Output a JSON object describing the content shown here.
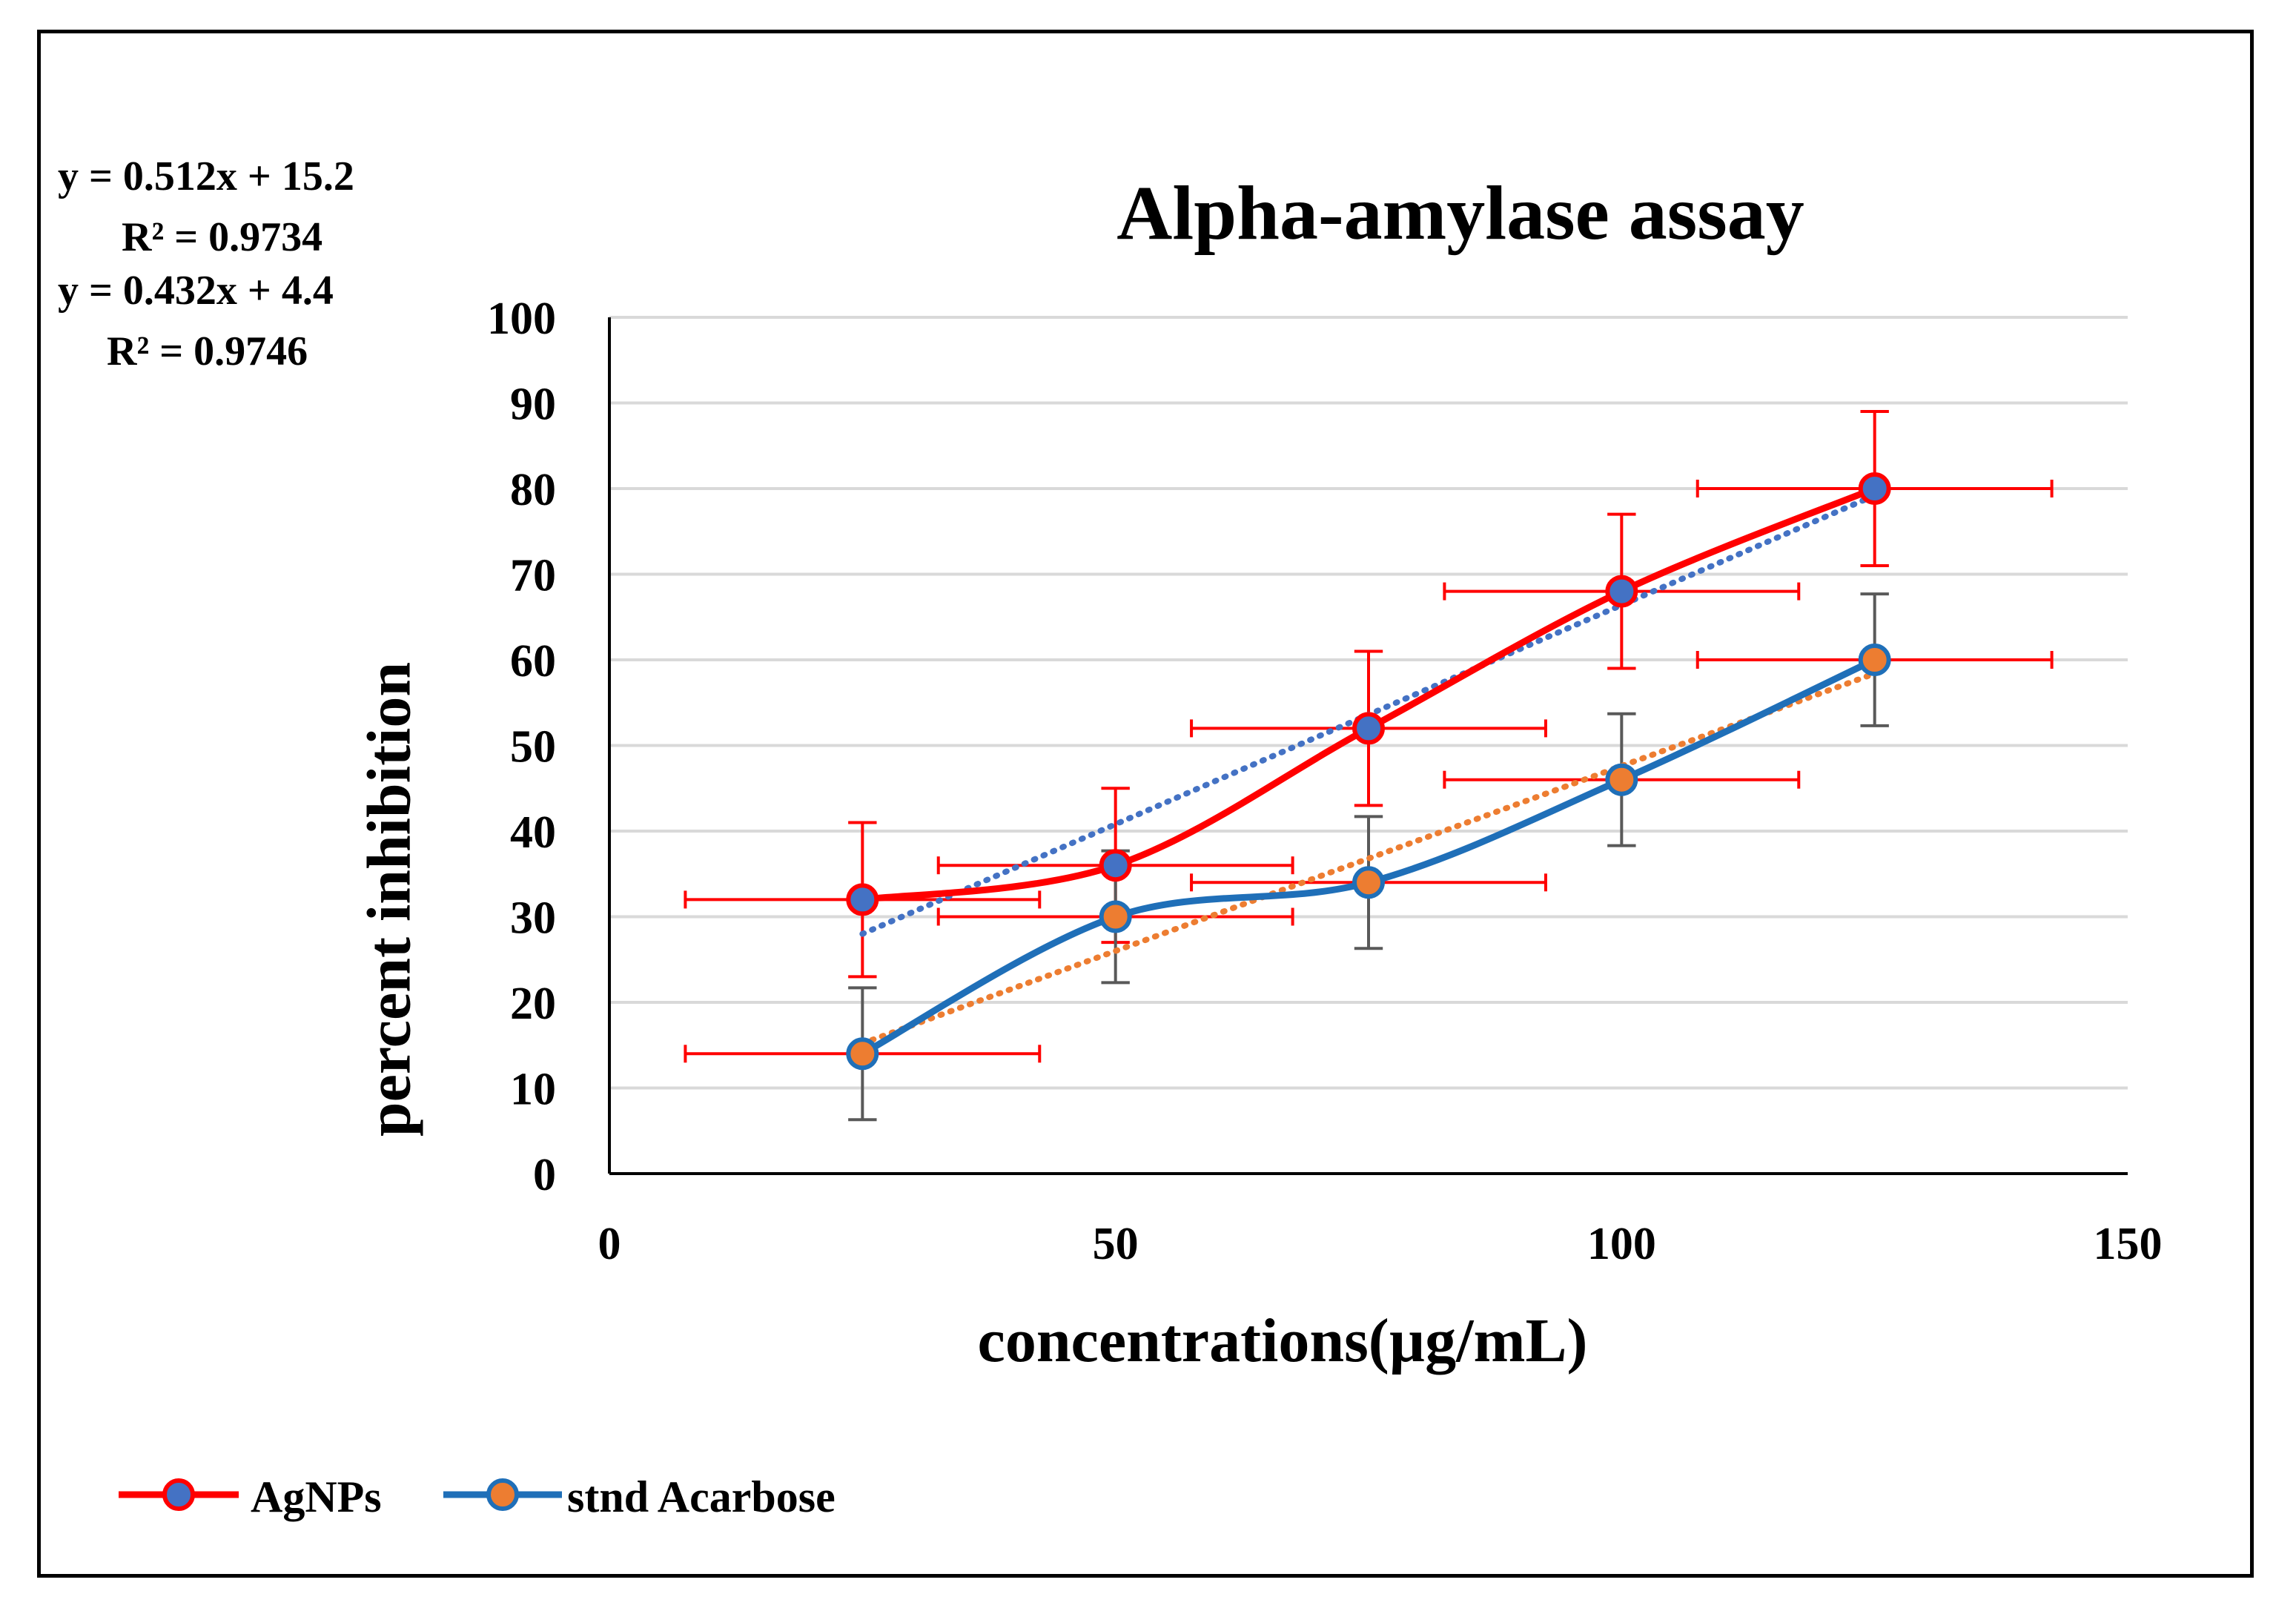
{
  "chart_data": {
    "type": "scatter",
    "title": "Alpha-amylase assay",
    "xlabel": "concentrations(µg/mL)",
    "ylabel": "percent inhibition",
    "xlim": [
      0,
      150
    ],
    "ylim": [
      0,
      100
    ],
    "xticks": [
      0,
      50,
      100,
      150
    ],
    "yticks": [
      0,
      10,
      20,
      30,
      40,
      50,
      60,
      70,
      80,
      90,
      100
    ],
    "grid": true,
    "legend_position": "bottom-left",
    "series": [
      {
        "name": "AgNPs",
        "line_color": "#ff0000",
        "marker_color": "#4472c4",
        "x": [
          25,
          50,
          75,
          100,
          125
        ],
        "y": [
          32,
          36,
          52,
          68,
          80
        ],
        "y_error": [
          9,
          9,
          9,
          9,
          9
        ],
        "x_error": [
          17.5,
          17.5,
          17.5,
          17.5,
          17.5
        ],
        "trendline": {
          "slope": 0.512,
          "intercept": 15.2,
          "color": "#4472c4",
          "equation": "y = 0.512x + 15.2",
          "r2": "R² = 0.9734"
        }
      },
      {
        "name": "stnd Acarbose",
        "line_color": "#1f6fb8",
        "marker_color": "#ed7d31",
        "x": [
          25,
          50,
          75,
          100,
          125
        ],
        "y": [
          14,
          30,
          34,
          46,
          60
        ],
        "y_error": [
          7.7,
          7.7,
          7.7,
          7.7,
          7.7
        ],
        "x_error": [
          17.5,
          17.5,
          17.5,
          17.5,
          17.5
        ],
        "trendline": {
          "slope": 0.432,
          "intercept": 4.4,
          "color": "#ed7d31",
          "equation": "y = 0.432x + 4.4",
          "r2": "R² = 0.9746"
        }
      }
    ]
  },
  "colors": {
    "grid": "#d9d9d9",
    "axis": "#000000",
    "x_error_bar": "#ff0000",
    "y_error_bar_series2": "#595959"
  }
}
